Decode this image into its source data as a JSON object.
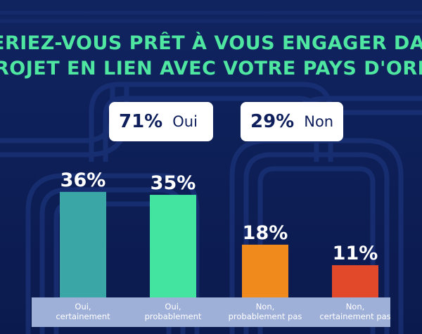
{
  "title": {
    "line1": "ERIEZ-VOUS PRÊT À VOUS ENGAGER DA",
    "line2": "ROJET EN LIEN AVEC VOTRE PAYS D'ORI"
  },
  "summary": {
    "yes": {
      "pct": "71%",
      "label": "Oui"
    },
    "no": {
      "pct": "29%",
      "label": "Non"
    }
  },
  "colors": {
    "background": "#0e1f5c",
    "title": "#4ee6a0",
    "label_band": "#9fb0d8"
  },
  "chart_data": {
    "type": "bar",
    "categories": [
      "Oui,\ncertainement",
      "Oui,\nprobablement",
      "Non,\nprobablement pas",
      "Non,\ncertainement pas"
    ],
    "values": [
      36,
      35,
      18,
      11
    ],
    "value_labels": [
      "36%",
      "35%",
      "18%",
      "11%"
    ],
    "colors": [
      "#3aa7a6",
      "#43e3a0",
      "#f08a1c",
      "#e2492a"
    ],
    "ylim": [
      0,
      40
    ],
    "grid": false,
    "legend": "none"
  }
}
